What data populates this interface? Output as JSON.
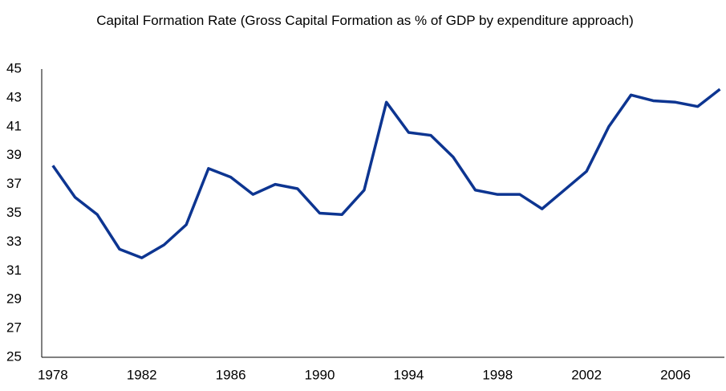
{
  "chart_data": {
    "type": "line",
    "title": "Capital Formation Rate (Gross Capital Formation as % of GDP by expenditure approach)",
    "x": [
      1978,
      1979,
      1980,
      1981,
      1982,
      1983,
      1984,
      1985,
      1986,
      1987,
      1988,
      1989,
      1990,
      1991,
      1992,
      1993,
      1994,
      1995,
      1996,
      1997,
      1998,
      1999,
      2000,
      2001,
      2002,
      2003,
      2004,
      2005,
      2006,
      2007,
      2008
    ],
    "series": [
      {
        "name": "Capital Formation Rate",
        "color": "#0d3591",
        "values": [
          38.3,
          36.1,
          34.9,
          32.5,
          31.9,
          32.8,
          34.2,
          38.1,
          37.5,
          36.3,
          37.0,
          36.7,
          35.0,
          34.9,
          36.6,
          42.7,
          40.6,
          40.4,
          38.9,
          36.6,
          36.3,
          36.3,
          35.3,
          36.6,
          37.9,
          41.0,
          43.2,
          42.8,
          42.7,
          42.4,
          43.6
        ]
      }
    ],
    "xlim": [
      1977.5,
      2008.2
    ],
    "xticks": [
      1978,
      1982,
      1986,
      1990,
      1994,
      1998,
      2002,
      2006
    ],
    "ylim": [
      25,
      45
    ],
    "yticks": [
      25,
      27,
      29,
      31,
      33,
      35,
      37,
      39,
      41,
      43,
      45
    ],
    "grid": false
  }
}
